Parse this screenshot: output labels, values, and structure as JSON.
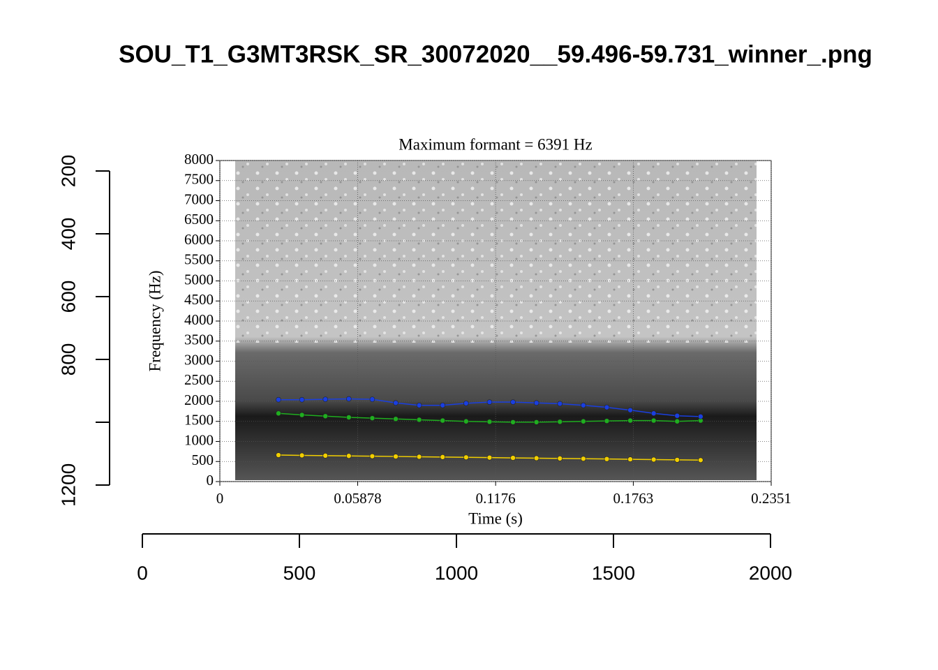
{
  "chart_data": {
    "type": "image-plot",
    "title": "SOU_T1_G3MT3RSK_SR_30072020__59.496-59.731_winner_.png",
    "xlim": [
      0,
      2000
    ],
    "xticks": [
      0,
      500,
      1000,
      1500,
      2000
    ],
    "ylim": [
      1200,
      200
    ],
    "yticks": [
      200,
      400,
      600,
      800,
      {
        "value": 1000,
        "label": null
      },
      1200
    ],
    "inset": {
      "type": "line",
      "title": "Maximum formant = 6391 Hz",
      "xlabel": "Time (s)",
      "ylabel": "Frequency (Hz)",
      "xlim": [
        0,
        0.2351
      ],
      "xticks": [
        0,
        0.05878,
        0.1176,
        0.1763,
        0.2351
      ],
      "ylim": [
        0,
        8000
      ],
      "yticks": [
        0,
        500,
        1000,
        1500,
        2000,
        2500,
        3000,
        3500,
        4000,
        4500,
        5000,
        5500,
        6000,
        6500,
        7000,
        7500,
        8000
      ],
      "grid": true,
      "x": [
        0.025,
        0.035,
        0.045,
        0.055,
        0.065,
        0.075,
        0.085,
        0.095,
        0.105,
        0.115,
        0.125,
        0.135,
        0.145,
        0.155,
        0.165,
        0.175,
        0.185,
        0.195,
        0.205
      ],
      "series": [
        {
          "color": "#f2cf00",
          "values": [
            660,
            653,
            646,
            639,
            632,
            625,
            618,
            611,
            604,
            597,
            590,
            583,
            576,
            569,
            562,
            555,
            548,
            541,
            534
          ]
        },
        {
          "color": "#1fae1f",
          "values": [
            1700,
            1660,
            1630,
            1600,
            1580,
            1560,
            1540,
            1520,
            1500,
            1490,
            1480,
            1480,
            1490,
            1500,
            1510,
            1520,
            1520,
            1500,
            1520
          ]
        },
        {
          "color": "#1a3fe0",
          "values": [
            2040,
            2040,
            2050,
            2060,
            2050,
            1960,
            1900,
            1900,
            1950,
            1980,
            1980,
            1960,
            1940,
            1900,
            1850,
            1780,
            1700,
            1640,
            1620
          ]
        }
      ]
    }
  }
}
